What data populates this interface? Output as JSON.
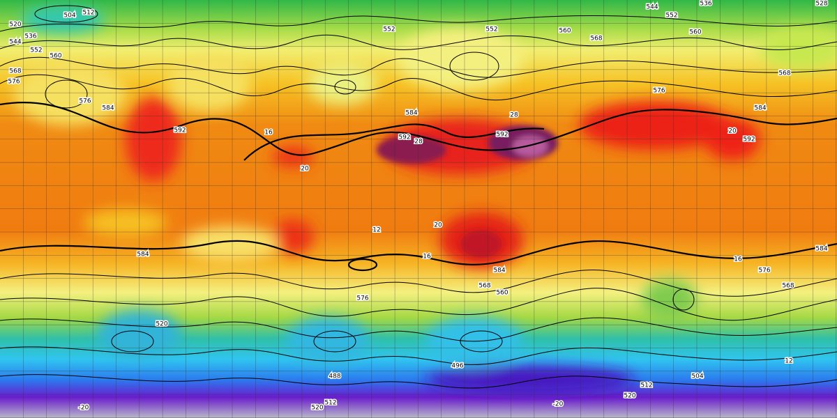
{
  "height_labels": [
    "504",
    "512",
    "520",
    "536",
    "544",
    "552",
    "560",
    "568",
    "576",
    "576",
    "584",
    "592",
    "584",
    "552",
    "552",
    "560",
    "568",
    "576",
    "584",
    "592",
    "584",
    "576",
    "568",
    "592",
    "592",
    "584",
    "584",
    "568",
    "576",
    "560",
    "520",
    "488",
    "496",
    "504",
    "512",
    "520",
    "520",
    "512",
    "528",
    "536",
    "544",
    "552",
    "560",
    "568"
  ],
  "temperature_labels": [
    "16",
    "20",
    "12",
    "20",
    "16",
    "28",
    "20",
    "16",
    "-20",
    "-20",
    "12",
    "28"
  ]
}
